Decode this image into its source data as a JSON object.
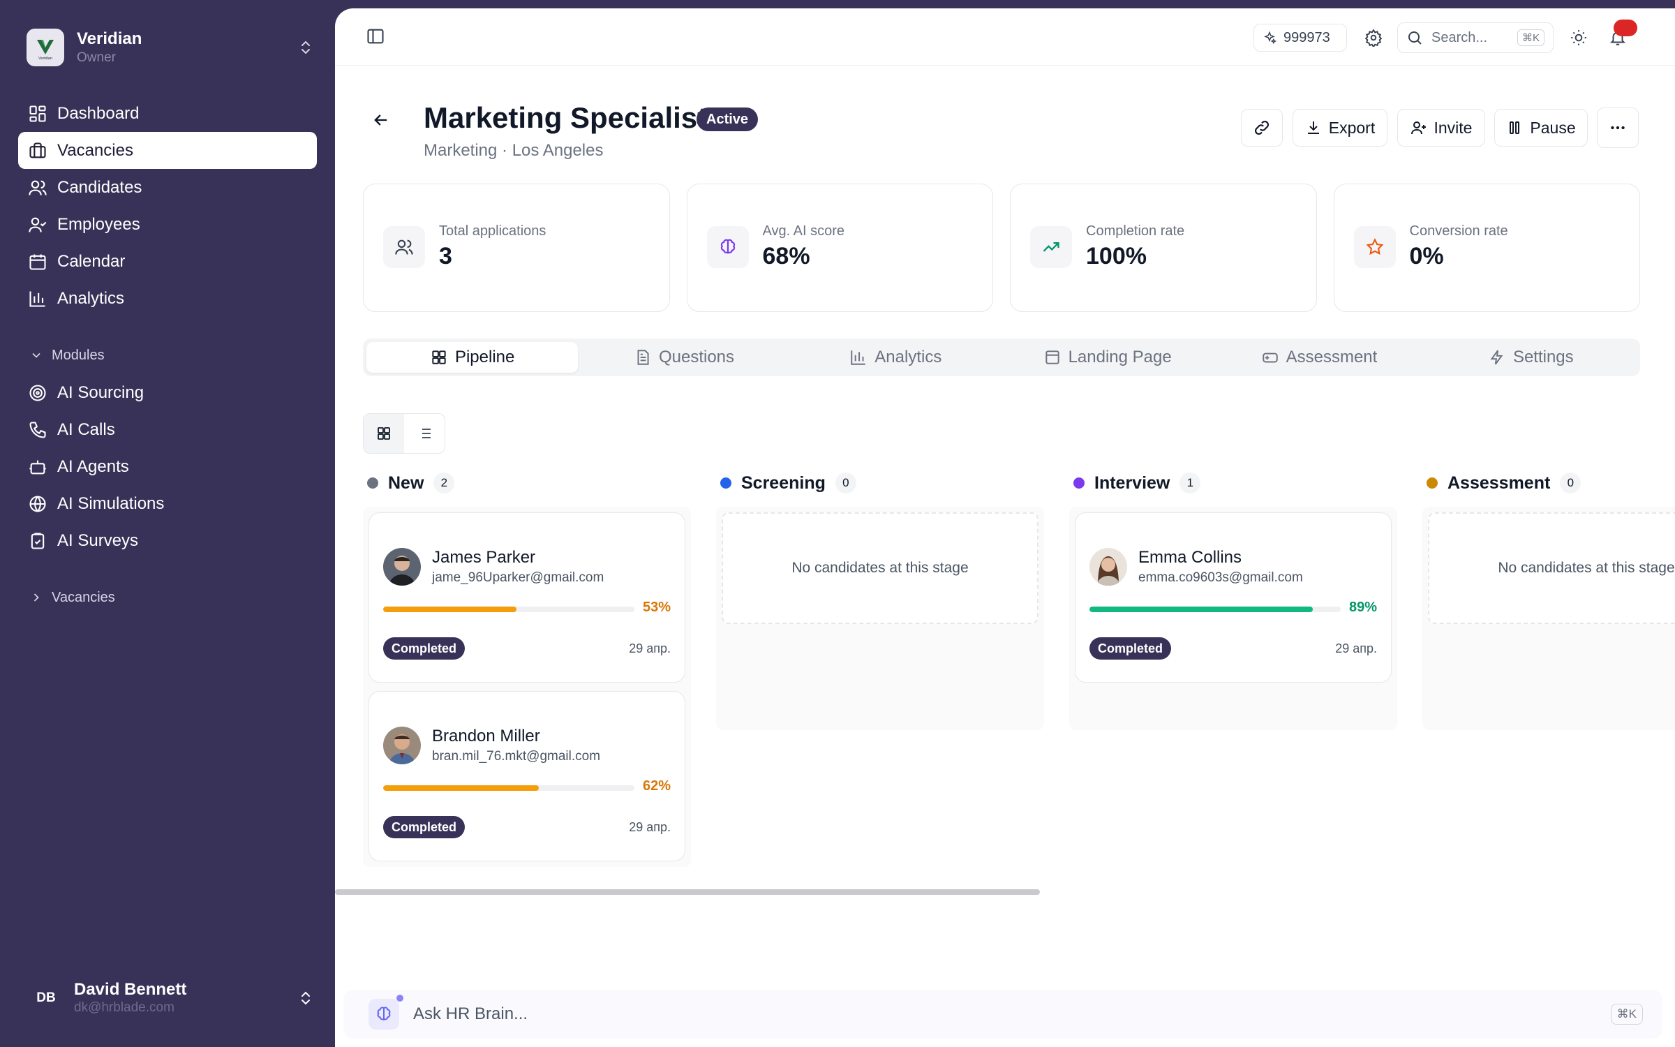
{
  "workspace": {
    "name": "Veridian",
    "role": "Owner",
    "logo_text": "Veridian"
  },
  "nav": {
    "items": [
      {
        "label": "Dashboard",
        "icon": "dashboard-icon"
      },
      {
        "label": "Vacancies",
        "icon": "briefcase-icon",
        "active": true
      },
      {
        "label": "Candidates",
        "icon": "users-icon"
      },
      {
        "label": "Employees",
        "icon": "user-check-icon"
      },
      {
        "label": "Calendar",
        "icon": "calendar-icon"
      },
      {
        "label": "Analytics",
        "icon": "bar-chart-icon"
      }
    ],
    "modules_label": "Modules",
    "modules": [
      {
        "label": "AI Sourcing",
        "icon": "target-icon"
      },
      {
        "label": "AI Calls",
        "icon": "phone-icon"
      },
      {
        "label": "AI Agents",
        "icon": "bot-icon"
      },
      {
        "label": "AI Simulations",
        "icon": "globe-icon"
      },
      {
        "label": "AI Surveys",
        "icon": "clipboard-check-icon"
      }
    ],
    "vacancies_label": "Vacancies"
  },
  "user": {
    "initials": "DB",
    "name": "David Bennett",
    "email": "dk@hrblade.com"
  },
  "topbar": {
    "credits": "999973",
    "search_placeholder": "Search...",
    "search_shortcut": "⌘K"
  },
  "vacancy": {
    "title": "Marketing Specialist",
    "status": "Active",
    "subtitle": "Marketing · Los Angeles"
  },
  "actions": {
    "export": "Export",
    "invite": "Invite",
    "pause": "Pause"
  },
  "stats": [
    {
      "label": "Total applications",
      "value": "3",
      "icon": "users-icon",
      "color": "#374151"
    },
    {
      "label": "Avg. AI score",
      "value": "68%",
      "icon": "brain-icon",
      "color": "#7c3aed"
    },
    {
      "label": "Completion rate",
      "value": "100%",
      "icon": "trending-up-icon",
      "color": "#059669"
    },
    {
      "label": "Conversion rate",
      "value": "0%",
      "icon": "star-icon",
      "color": "#ea580c"
    }
  ],
  "tabs": [
    {
      "label": "Pipeline",
      "icon": "grid-icon",
      "active": true
    },
    {
      "label": "Questions",
      "icon": "file-text-icon"
    },
    {
      "label": "Analytics",
      "icon": "bar-chart-icon"
    },
    {
      "label": "Landing Page",
      "icon": "layout-icon"
    },
    {
      "label": "Assessment",
      "icon": "gamepad-icon"
    },
    {
      "label": "Settings",
      "icon": "zap-icon"
    }
  ],
  "pipeline": {
    "empty_text": "No candidates at this stage",
    "columns": [
      {
        "title": "New",
        "count": "2",
        "color": "#6b7280",
        "cards": [
          {
            "name": "James Parker",
            "email": "jame_96Uparker@gmail.com",
            "score": 53,
            "score_label": "53%",
            "status": "Completed",
            "date": "29 апр.",
            "bar_color": "#f59e0b",
            "pct_color": "#d97706"
          },
          {
            "name": "Brandon Miller",
            "email": "bran.mil_76.mkt@gmail.com",
            "score": 62,
            "score_label": "62%",
            "status": "Completed",
            "date": "29 апр.",
            "bar_color": "#f59e0b",
            "pct_color": "#d97706"
          }
        ]
      },
      {
        "title": "Screening",
        "count": "0",
        "color": "#2563eb",
        "cards": []
      },
      {
        "title": "Interview",
        "count": "1",
        "color": "#7c3aed",
        "cards": [
          {
            "name": "Emma Collins",
            "email": "emma.co9603s@gmail.com",
            "score": 89,
            "score_label": "89%",
            "status": "Completed",
            "date": "29 апр.",
            "bar_color": "#10b981",
            "pct_color": "#059669"
          }
        ]
      },
      {
        "title": "Assessment",
        "count": "0",
        "color": "#ca8a04",
        "cards": []
      }
    ]
  },
  "ask": {
    "placeholder": "Ask HR Brain...",
    "shortcut": "⌘K"
  }
}
